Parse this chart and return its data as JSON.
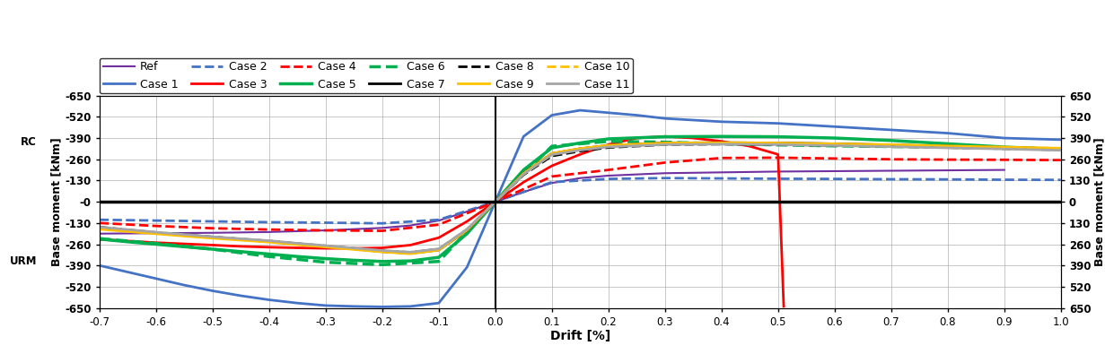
{
  "xlabel": "Drift [%]",
  "ylabel_left": "Base moment [kNm]",
  "ylabel_right": "Base moment [kNm]",
  "xlim": [
    -0.7,
    1.0
  ],
  "ylim": [
    -650,
    650
  ],
  "yticks_left": [
    -650,
    -520,
    -390,
    -260,
    -130,
    0,
    130,
    260,
    390,
    520,
    650
  ],
  "ytick_labels_left": [
    "-650",
    "-520",
    "-390",
    "-260",
    "-130",
    "-0",
    "-130",
    "-260",
    "-390",
    "-520",
    "-650"
  ],
  "yticks_right": [
    -650,
    -520,
    -390,
    -260,
    -130,
    0,
    130,
    260,
    390,
    520,
    650
  ],
  "ytick_labels_right": [
    "650",
    "520",
    "390",
    "260",
    "130",
    "0",
    "130",
    "260",
    "390",
    "520",
    "650"
  ],
  "xticks": [
    -0.7,
    -0.6,
    -0.5,
    -0.4,
    -0.3,
    -0.2,
    -0.1,
    0.0,
    0.1,
    0.2,
    0.3,
    0.4,
    0.5,
    0.6,
    0.7,
    0.8,
    0.9,
    1.0
  ],
  "background_color": "#ffffff",
  "grid_color": "#b0b0b0",
  "series": [
    {
      "name": "Ref",
      "color": "#7030a0",
      "linestyle": "solid",
      "linewidth": 1.5,
      "x": [
        -0.7,
        -0.5,
        -0.4,
        -0.3,
        -0.2,
        -0.15,
        -0.1,
        -0.05,
        0.0,
        0.05,
        0.1,
        0.15,
        0.2,
        0.3,
        0.5,
        0.7,
        0.9
      ],
      "y": [
        -195,
        -190,
        -185,
        -175,
        -160,
        -145,
        -115,
        -60,
        0,
        60,
        115,
        145,
        160,
        175,
        185,
        190,
        195
      ]
    },
    {
      "name": "Case 1",
      "color": "#4472c4",
      "linestyle": "solid",
      "linewidth": 2.0,
      "x": [
        -0.7,
        -0.65,
        -0.6,
        -0.55,
        -0.5,
        -0.45,
        -0.4,
        -0.35,
        -0.3,
        -0.25,
        -0.2,
        -0.15,
        -0.1,
        -0.05,
        0.0,
        0.05,
        0.1,
        0.15,
        0.2,
        0.25,
        0.3,
        0.4,
        0.5,
        0.6,
        0.7,
        0.8,
        0.9,
        1.0
      ],
      "y": [
        -390,
        -430,
        -470,
        -510,
        -545,
        -575,
        -600,
        -620,
        -635,
        -640,
        -643,
        -640,
        -620,
        -400,
        0,
        400,
        530,
        560,
        545,
        530,
        510,
        490,
        480,
        460,
        440,
        420,
        390,
        380
      ]
    },
    {
      "name": "Case 2",
      "color": "#4472c4",
      "linestyle": "dashed",
      "linewidth": 2.0,
      "x": [
        -0.7,
        -0.6,
        -0.5,
        -0.4,
        -0.3,
        -0.2,
        -0.1,
        0.0,
        0.1,
        0.2,
        0.3,
        0.4,
        0.5,
        0.6,
        0.7,
        0.8,
        0.9,
        1.0
      ],
      "y": [
        -110,
        -115,
        -120,
        -125,
        -128,
        -132,
        -110,
        0,
        120,
        140,
        145,
        143,
        141,
        140,
        138,
        137,
        135,
        134
      ]
    },
    {
      "name": "Case 3",
      "color": "#ff0000",
      "linestyle": "solid",
      "linewidth": 2.0,
      "x": [
        -0.7,
        -0.6,
        -0.5,
        -0.45,
        -0.4,
        -0.35,
        -0.3,
        -0.25,
        -0.2,
        -0.15,
        -0.1,
        -0.05,
        0.0,
        0.05,
        0.1,
        0.15,
        0.2,
        0.25,
        0.3,
        0.35,
        0.4,
        0.45,
        0.5,
        0.51
      ],
      "y": [
        -230,
        -250,
        -265,
        -273,
        -278,
        -282,
        -285,
        -285,
        -282,
        -265,
        -220,
        -120,
        0,
        120,
        220,
        290,
        350,
        390,
        400,
        390,
        370,
        340,
        290,
        -640
      ]
    },
    {
      "name": "Case 4",
      "color": "#ff0000",
      "linestyle": "dashed",
      "linewidth": 2.0,
      "x": [
        -0.7,
        -0.6,
        -0.5,
        -0.4,
        -0.3,
        -0.2,
        -0.1,
        0.0,
        0.1,
        0.2,
        0.3,
        0.4,
        0.5,
        0.6,
        0.7,
        0.8,
        0.9,
        1.0
      ],
      "y": [
        -130,
        -148,
        -162,
        -170,
        -175,
        -178,
        -140,
        0,
        155,
        195,
        240,
        268,
        270,
        265,
        260,
        258,
        257,
        255
      ]
    },
    {
      "name": "Case 5",
      "color": "#00b050",
      "linestyle": "solid",
      "linewidth": 2.5,
      "x": [
        -0.7,
        -0.65,
        -0.6,
        -0.55,
        -0.5,
        -0.45,
        -0.4,
        -0.35,
        -0.3,
        -0.25,
        -0.2,
        -0.15,
        -0.1,
        -0.05,
        0.0,
        0.05,
        0.1,
        0.15,
        0.2,
        0.3,
        0.4,
        0.5,
        0.6,
        0.7,
        0.8,
        0.9,
        1.0
      ],
      "y": [
        -228,
        -245,
        -260,
        -275,
        -290,
        -305,
        -320,
        -335,
        -348,
        -358,
        -365,
        -362,
        -340,
        -195,
        0,
        195,
        330,
        360,
        385,
        398,
        400,
        398,
        390,
        375,
        355,
        335,
        320
      ]
    },
    {
      "name": "Case 6",
      "color": "#00b050",
      "linestyle": "dashed",
      "linewidth": 2.5,
      "x": [
        -0.7,
        -0.6,
        -0.5,
        -0.4,
        -0.3,
        -0.2,
        -0.1,
        0.0,
        0.1,
        0.2,
        0.3,
        0.4,
        0.5,
        0.6,
        0.7,
        0.8,
        0.9,
        1.0
      ],
      "y": [
        -225,
        -255,
        -290,
        -335,
        -370,
        -385,
        -365,
        0,
        340,
        370,
        365,
        355,
        348,
        342,
        338,
        335,
        330,
        325
      ]
    },
    {
      "name": "Case 7",
      "color": "#000000",
      "linestyle": "solid",
      "linewidth": 2.0,
      "x": [
        -0.7,
        -0.65,
        -0.6,
        -0.55,
        -0.5,
        -0.45,
        -0.4,
        -0.35,
        -0.3,
        -0.25,
        -0.2,
        -0.15,
        -0.1,
        -0.05,
        0.0,
        0.05,
        0.1,
        0.15,
        0.2,
        0.3,
        0.4,
        0.5,
        0.6,
        0.7,
        0.8,
        0.9,
        1.0
      ],
      "y": [
        -160,
        -175,
        -190,
        -205,
        -218,
        -230,
        -242,
        -258,
        -272,
        -288,
        -305,
        -315,
        -295,
        -175,
        0,
        175,
        295,
        325,
        345,
        360,
        362,
        360,
        355,
        348,
        340,
        332,
        325
      ]
    },
    {
      "name": "Case 8",
      "color": "#000000",
      "linestyle": "dashed",
      "linewidth": 2.0,
      "x": [
        -0.7,
        -0.65,
        -0.6,
        -0.55,
        -0.5,
        -0.45,
        -0.4,
        -0.35,
        -0.3,
        -0.25,
        -0.2,
        -0.15,
        -0.1,
        -0.05,
        0.0,
        0.05,
        0.1,
        0.15,
        0.2,
        0.3,
        0.4,
        0.5,
        0.6,
        0.7,
        0.8,
        0.9,
        1.0
      ],
      "y": [
        -155,
        -172,
        -188,
        -202,
        -215,
        -228,
        -240,
        -256,
        -270,
        -285,
        -300,
        -310,
        -290,
        -170,
        0,
        165,
        280,
        310,
        332,
        350,
        353,
        350,
        345,
        340,
        332,
        325,
        318
      ]
    },
    {
      "name": "Case 9",
      "color": "#ffc000",
      "linestyle": "solid",
      "linewidth": 2.0,
      "x": [
        -0.7,
        -0.65,
        -0.6,
        -0.55,
        -0.5,
        -0.45,
        -0.4,
        -0.35,
        -0.3,
        -0.25,
        -0.2,
        -0.15,
        -0.1,
        -0.05,
        0.0,
        0.05,
        0.1,
        0.15,
        0.2,
        0.3,
        0.4,
        0.5,
        0.6,
        0.7,
        0.8,
        0.9,
        1.0
      ],
      "y": [
        -168,
        -182,
        -196,
        -210,
        -223,
        -235,
        -247,
        -263,
        -277,
        -292,
        -307,
        -318,
        -296,
        -174,
        0,
        174,
        296,
        326,
        346,
        360,
        362,
        360,
        355,
        350,
        342,
        335,
        328
      ]
    },
    {
      "name": "Case 10",
      "color": "#ffc000",
      "linestyle": "dashed",
      "linewidth": 2.0,
      "x": [
        -0.7,
        -0.65,
        -0.6,
        -0.55,
        -0.5,
        -0.45,
        -0.4,
        -0.35,
        -0.3,
        -0.25,
        -0.2,
        -0.15,
        -0.1,
        -0.05,
        0.0,
        0.05,
        0.1,
        0.15,
        0.2,
        0.3,
        0.4,
        0.5,
        0.6,
        0.7,
        0.8,
        0.9,
        1.0
      ],
      "y": [
        -162,
        -177,
        -192,
        -206,
        -219,
        -232,
        -244,
        -260,
        -273,
        -288,
        -302,
        -312,
        -292,
        -170,
        0,
        170,
        292,
        320,
        340,
        355,
        358,
        356,
        350,
        344,
        337,
        330,
        322
      ]
    },
    {
      "name": "Case 11",
      "color": "#a6a6a6",
      "linestyle": "solid",
      "linewidth": 2.0,
      "x": [
        -0.7,
        -0.65,
        -0.6,
        -0.55,
        -0.5,
        -0.45,
        -0.4,
        -0.35,
        -0.3,
        -0.25,
        -0.2,
        -0.15,
        -0.1,
        -0.05,
        0.0,
        0.05,
        0.1,
        0.15,
        0.2,
        0.3,
        0.4,
        0.5,
        0.6,
        0.7,
        0.8,
        0.9,
        1.0
      ],
      "y": [
        -155,
        -170,
        -186,
        -200,
        -214,
        -226,
        -238,
        -254,
        -268,
        -283,
        -298,
        -308,
        -288,
        -168,
        0,
        168,
        288,
        316,
        336,
        350,
        353,
        350,
        344,
        337,
        330,
        323,
        315
      ]
    }
  ],
  "legend_order": [
    [
      "Ref",
      "Case 1",
      "Case 2",
      "Case 3",
      "Case 4",
      "Case 5"
    ],
    [
      "Case 6",
      "Case 7",
      "Case 8",
      "Case 9",
      "Case 10",
      "Case 11"
    ]
  ]
}
